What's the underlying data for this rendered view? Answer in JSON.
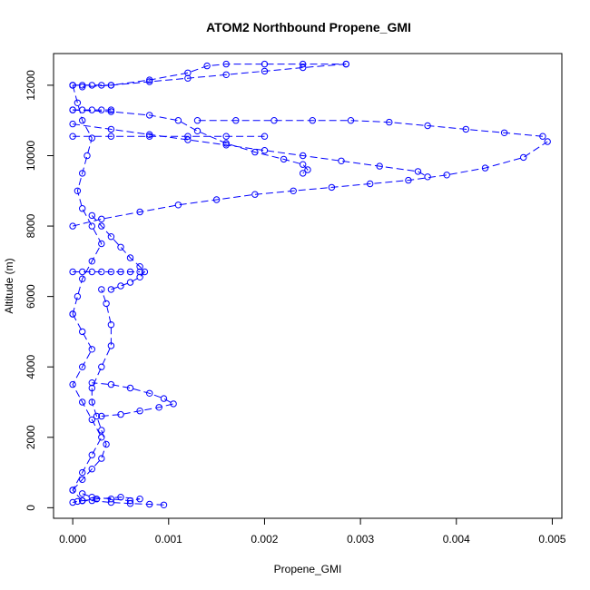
{
  "chart_data": {
    "type": "scatter",
    "title": "ATOM2 Northbound Propene_GMI",
    "xlabel": "Propene_GMI",
    "ylabel": "Altitude (m)",
    "xlim": [
      -0.0002,
      0.0051
    ],
    "ylim": [
      -300,
      12900
    ],
    "xticks": [
      0.0,
      0.001,
      0.002,
      0.003,
      0.004,
      0.005
    ],
    "xtick_labels": [
      "0.000",
      "0.001",
      "0.002",
      "0.003",
      "0.004",
      "0.005"
    ],
    "yticks": [
      0,
      2000,
      4000,
      6000,
      8000,
      10000,
      12000
    ],
    "ytick_labels": [
      "0",
      "2000",
      "4000",
      "6000",
      "8000",
      "10000",
      "12000"
    ],
    "color": "#0000ff",
    "marker": "open-circle",
    "series": [
      {
        "x": [
          0.00095,
          0.0008,
          0.0006,
          0.0004,
          0.0002,
          0.0001,
          5e-05,
          0.0
        ],
        "y": [
          80,
          100,
          120,
          150,
          200,
          200,
          180,
          150
        ]
      },
      {
        "x": [
          0.0001,
          0.00025,
          0.0005,
          0.0007,
          0.0006,
          0.0004,
          0.0002,
          0.0001
        ],
        "y": [
          200,
          250,
          300,
          250,
          200,
          250,
          300,
          400
        ]
      },
      {
        "x": [
          0.0,
          0.0001,
          0.0002,
          0.0003,
          0.00035,
          0.0003,
          0.00025,
          0.0002,
          0.0002,
          0.0003,
          0.0004,
          0.0004,
          0.00035,
          0.0003
        ],
        "y": [
          500,
          800,
          1100,
          1400,
          1800,
          2200,
          2600,
          3000,
          3400,
          4000,
          4600,
          5200,
          5800,
          6200
        ]
      },
      {
        "x": [
          0.0003,
          0.0005,
          0.0007,
          0.0009,
          0.00105,
          0.00095,
          0.0008,
          0.0006,
          0.0004,
          0.0002
        ],
        "y": [
          2600,
          2650,
          2750,
          2850,
          2950,
          3100,
          3250,
          3400,
          3500,
          3550
        ]
      },
      {
        "x": [
          0.0,
          0.0001,
          0.0002,
          0.0003,
          0.0004,
          0.0005,
          0.0006,
          0.0007
        ],
        "y": [
          6700,
          6700,
          6700,
          6700,
          6700,
          6700,
          6700,
          6700
        ]
      },
      {
        "x": [
          0.0004,
          0.0005,
          0.0006,
          0.0007,
          0.00075,
          0.0007,
          0.0006,
          0.0005,
          0.0004,
          0.0003,
          0.0002
        ],
        "y": [
          6200,
          6300,
          6400,
          6550,
          6700,
          6850,
          7100,
          7400,
          7700,
          8000,
          8300
        ]
      },
      {
        "x": [
          0.0,
          0.0003,
          0.0007,
          0.0011,
          0.0015,
          0.0019,
          0.0023,
          0.0027,
          0.0031,
          0.0035,
          0.0039,
          0.0043,
          0.0047,
          0.00495
        ],
        "y": [
          8000,
          8200,
          8400,
          8600,
          8750,
          8900,
          9000,
          9100,
          9200,
          9300,
          9450,
          9650,
          9950,
          10400
        ]
      },
      {
        "x": [
          0.0049,
          0.0045,
          0.0041,
          0.0037,
          0.0033,
          0.0029,
          0.0025,
          0.0021,
          0.0017,
          0.0013
        ],
        "y": [
          10550,
          10650,
          10750,
          10850,
          10950,
          11000,
          11000,
          11000,
          11000,
          11000
        ]
      },
      {
        "x": [
          0.0,
          0.0004,
          0.0008,
          0.0012,
          0.0016,
          0.002
        ],
        "y": [
          10550,
          10550,
          10550,
          10550,
          10550,
          10550
        ]
      },
      {
        "x": [
          0.0,
          0.0004,
          0.0008,
          0.0011,
          0.0013,
          0.0016,
          0.0019,
          0.0022,
          0.0024,
          0.00245,
          0.0024
        ],
        "y": [
          11300,
          11250,
          11150,
          11000,
          10700,
          10350,
          10100,
          9900,
          9750,
          9600,
          9500
        ]
      },
      {
        "x": [
          0.0,
          0.0004,
          0.0008,
          0.0012,
          0.0016,
          0.002,
          0.0024,
          0.0028,
          0.0032,
          0.0036,
          0.0037
        ],
        "y": [
          10900,
          10750,
          10600,
          10450,
          10300,
          10150,
          10000,
          9850,
          9700,
          9550,
          9400
        ]
      },
      {
        "x": [
          0.0,
          0.0004,
          0.0008,
          0.0012,
          0.0014,
          0.0016,
          0.002,
          0.0024,
          0.00285
        ],
        "y": [
          12000,
          12000,
          12150,
          12350,
          12550,
          12600,
          12600,
          12600,
          12600
        ]
      },
      {
        "x": [
          0.00285,
          0.0024,
          0.002,
          0.0016,
          0.0012,
          0.0008,
          0.0004,
          0.0001
        ],
        "y": [
          12600,
          12500,
          12400,
          12300,
          12200,
          12100,
          12000,
          11950
        ]
      },
      {
        "x": [
          0.0,
          0.0001,
          0.0002,
          0.0003,
          0.0004
        ],
        "y": [
          11300,
          11300,
          11300,
          11300,
          11300
        ]
      },
      {
        "x": [
          0.0,
          0.0001,
          0.0002,
          0.0003
        ],
        "y": [
          12000,
          12000,
          12000,
          12000
        ]
      },
      {
        "x": [
          0.0,
          5e-05,
          0.0001,
          0.0002,
          0.00015,
          0.0001,
          5e-05,
          0.0001,
          0.0002,
          0.0003,
          0.0002,
          0.0001,
          5e-05,
          0.0
        ],
        "y": [
          12000,
          11500,
          11000,
          10500,
          10000,
          9500,
          9000,
          8500,
          8000,
          7500,
          7000,
          6500,
          6000,
          5500
        ]
      },
      {
        "x": [
          0.0,
          0.0001,
          0.0002,
          0.0001,
          0.0,
          0.0001,
          0.0002,
          0.0003,
          0.0002,
          0.0001,
          0.0,
          0.0001
        ],
        "y": [
          5500,
          5000,
          4500,
          4000,
          3500,
          3000,
          2500,
          2000,
          1500,
          1000,
          500,
          200
        ]
      }
    ]
  }
}
